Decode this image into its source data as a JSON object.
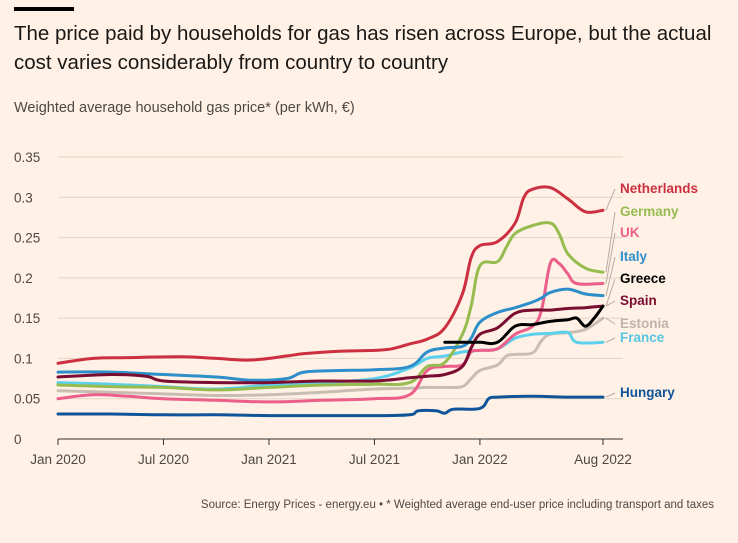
{
  "title": "The price paid by households for gas has risen across Europe, but the actual cost varies considerably from country to country",
  "subtitle": "Weighted average household gas price* (per kWh, €)",
  "source": "Source: Energy Prices - energy.eu • * Weighted average end-user price including transport and taxes",
  "chart_data": {
    "type": "line",
    "title": "The price paid by households for gas has risen across Europe, but the actual cost varies considerably from country to country",
    "ylabel": "Weighted average household gas price* (per kWh, €)",
    "xlabel": "",
    "ylim": [
      0,
      0.35
    ],
    "xlim": [
      0,
      31
    ],
    "yticks": [
      0,
      0.05,
      0.1,
      0.15,
      0.2,
      0.25,
      0.3,
      0.35
    ],
    "ytick_labels": [
      "0",
      "0.05",
      "0.1",
      "0.15",
      "0.2",
      "0.25",
      "0.3",
      "0.35"
    ],
    "xticks": [
      0,
      6,
      12,
      18,
      24,
      31
    ],
    "xtick_labels": [
      "Jan 2020",
      "Jul 2020",
      "Jan 2021",
      "Jul 2021",
      "Jan 2022",
      "Aug 2022"
    ],
    "x_unit": "months since Jan 2020",
    "grid": true,
    "series": [
      {
        "name": "Netherlands",
        "color": "#cc2f3f",
        "points": [
          [
            0,
            0.094
          ],
          [
            2,
            0.1
          ],
          [
            4,
            0.101
          ],
          [
            7,
            0.102
          ],
          [
            9,
            0.1
          ],
          [
            11,
            0.098
          ],
          [
            13,
            0.103
          ],
          [
            14,
            0.106
          ],
          [
            16,
            0.109
          ],
          [
            18,
            0.11
          ],
          [
            19,
            0.112
          ],
          [
            20,
            0.118
          ],
          [
            21,
            0.124
          ],
          [
            22,
            0.138
          ],
          [
            23,
            0.18
          ],
          [
            23.5,
            0.225
          ],
          [
            24,
            0.24
          ],
          [
            25,
            0.245
          ],
          [
            26,
            0.268
          ],
          [
            26.5,
            0.3
          ],
          [
            27,
            0.31
          ],
          [
            28,
            0.312
          ],
          [
            29,
            0.298
          ],
          [
            30,
            0.282
          ],
          [
            31,
            0.284
          ]
        ]
      },
      {
        "name": "Germany",
        "color": "#96bb4e",
        "points": [
          [
            0,
            0.067
          ],
          [
            3,
            0.065
          ],
          [
            6,
            0.064
          ],
          [
            9,
            0.061
          ],
          [
            12,
            0.064
          ],
          [
            15,
            0.067
          ],
          [
            18,
            0.068
          ],
          [
            20,
            0.07
          ],
          [
            21,
            0.09
          ],
          [
            22,
            0.095
          ],
          [
            23,
            0.13
          ],
          [
            23.5,
            0.165
          ],
          [
            24,
            0.215
          ],
          [
            25,
            0.22
          ],
          [
            25.5,
            0.238
          ],
          [
            26,
            0.255
          ],
          [
            27,
            0.265
          ],
          [
            28,
            0.268
          ],
          [
            28.5,
            0.255
          ],
          [
            29,
            0.23
          ],
          [
            30,
            0.212
          ],
          [
            31,
            0.207
          ]
        ]
      },
      {
        "name": "UK",
        "color": "#eb5f8a",
        "points": [
          [
            0,
            0.05
          ],
          [
            2,
            0.055
          ],
          [
            4,
            0.053
          ],
          [
            6,
            0.05
          ],
          [
            9,
            0.048
          ],
          [
            12,
            0.046
          ],
          [
            15,
            0.048
          ],
          [
            18,
            0.05
          ],
          [
            20,
            0.055
          ],
          [
            21,
            0.085
          ],
          [
            22,
            0.09
          ],
          [
            23,
            0.092
          ],
          [
            23.5,
            0.108
          ],
          [
            24,
            0.11
          ],
          [
            25,
            0.112
          ],
          [
            26,
            0.13
          ],
          [
            27,
            0.14
          ],
          [
            27.5,
            0.16
          ],
          [
            28,
            0.218
          ],
          [
            28.5,
            0.218
          ],
          [
            29,
            0.205
          ],
          [
            29.5,
            0.193
          ],
          [
            31,
            0.193
          ]
        ]
      },
      {
        "name": "Italy",
        "color": "#2d8ec9",
        "points": [
          [
            0,
            0.083
          ],
          [
            3,
            0.083
          ],
          [
            6,
            0.08
          ],
          [
            9,
            0.077
          ],
          [
            11,
            0.073
          ],
          [
            13,
            0.075
          ],
          [
            14,
            0.083
          ],
          [
            16,
            0.085
          ],
          [
            18,
            0.086
          ],
          [
            20,
            0.09
          ],
          [
            21,
            0.108
          ],
          [
            22,
            0.113
          ],
          [
            23,
            0.115
          ],
          [
            23.5,
            0.125
          ],
          [
            24,
            0.145
          ],
          [
            25,
            0.157
          ],
          [
            26,
            0.163
          ],
          [
            27,
            0.17
          ],
          [
            27.5,
            0.175
          ],
          [
            28,
            0.182
          ],
          [
            29,
            0.186
          ],
          [
            30,
            0.18
          ],
          [
            31,
            0.178
          ]
        ]
      },
      {
        "name": "Greece",
        "color": "#000000",
        "points": [
          [
            22,
            0.12
          ],
          [
            23,
            0.12
          ],
          [
            24,
            0.12
          ],
          [
            25,
            0.12
          ],
          [
            26,
            0.14
          ],
          [
            27,
            0.142
          ],
          [
            28,
            0.146
          ],
          [
            29,
            0.148
          ],
          [
            29.5,
            0.15
          ],
          [
            30,
            0.14
          ],
          [
            30.5,
            0.15
          ],
          [
            31,
            0.165
          ]
        ]
      },
      {
        "name": "Spain",
        "color": "#7a0d32",
        "points": [
          [
            0,
            0.077
          ],
          [
            3,
            0.08
          ],
          [
            5,
            0.078
          ],
          [
            6,
            0.072
          ],
          [
            9,
            0.07
          ],
          [
            12,
            0.07
          ],
          [
            15,
            0.072
          ],
          [
            18,
            0.072
          ],
          [
            20,
            0.076
          ],
          [
            21,
            0.078
          ],
          [
            22,
            0.08
          ],
          [
            23,
            0.09
          ],
          [
            23.5,
            0.113
          ],
          [
            24,
            0.13
          ],
          [
            25,
            0.138
          ],
          [
            26,
            0.156
          ],
          [
            27,
            0.16
          ],
          [
            28,
            0.16
          ],
          [
            29,
            0.162
          ],
          [
            30,
            0.163
          ],
          [
            31,
            0.165
          ]
        ]
      },
      {
        "name": "Estonia",
        "color": "#c9bdb1",
        "points": [
          [
            0,
            0.06
          ],
          [
            3,
            0.058
          ],
          [
            6,
            0.056
          ],
          [
            9,
            0.054
          ],
          [
            12,
            0.055
          ],
          [
            15,
            0.058
          ],
          [
            18,
            0.062
          ],
          [
            20,
            0.063
          ],
          [
            21,
            0.064
          ],
          [
            22,
            0.064
          ],
          [
            23,
            0.065
          ],
          [
            23.5,
            0.075
          ],
          [
            24,
            0.085
          ],
          [
            25,
            0.092
          ],
          [
            25.5,
            0.103
          ],
          [
            26,
            0.105
          ],
          [
            27,
            0.107
          ],
          [
            27.5,
            0.122
          ],
          [
            28,
            0.13
          ],
          [
            29,
            0.132
          ],
          [
            30,
            0.136
          ],
          [
            31,
            0.15
          ]
        ]
      },
      {
        "name": "France",
        "color": "#5cd0ec",
        "points": [
          [
            0,
            0.07
          ],
          [
            3,
            0.068
          ],
          [
            6,
            0.065
          ],
          [
            9,
            0.062
          ],
          [
            12,
            0.067
          ],
          [
            15,
            0.07
          ],
          [
            18,
            0.075
          ],
          [
            20,
            0.088
          ],
          [
            21,
            0.1
          ],
          [
            22,
            0.103
          ],
          [
            23,
            0.108
          ],
          [
            24,
            0.11
          ],
          [
            25,
            0.112
          ],
          [
            26,
            0.125
          ],
          [
            27,
            0.13
          ],
          [
            28,
            0.131
          ],
          [
            29,
            0.132
          ],
          [
            29.5,
            0.12
          ],
          [
            31,
            0.12
          ]
        ]
      },
      {
        "name": "Hungary",
        "color": "#0f5499",
        "points": [
          [
            0,
            0.031
          ],
          [
            3,
            0.031
          ],
          [
            6,
            0.03
          ],
          [
            9,
            0.03
          ],
          [
            12,
            0.029
          ],
          [
            15,
            0.029
          ],
          [
            18,
            0.029
          ],
          [
            20,
            0.03
          ],
          [
            20.5,
            0.035
          ],
          [
            21.5,
            0.035
          ],
          [
            22,
            0.032
          ],
          [
            22.5,
            0.037
          ],
          [
            24,
            0.038
          ],
          [
            24.5,
            0.05
          ],
          [
            25,
            0.052
          ],
          [
            27,
            0.053
          ],
          [
            29,
            0.052
          ],
          [
            31,
            0.052
          ]
        ]
      }
    ],
    "legend": [
      "Netherlands",
      "Germany",
      "UK",
      "Italy",
      "Greece",
      "Spain",
      "Estonia",
      "France",
      "Hungary"
    ]
  }
}
